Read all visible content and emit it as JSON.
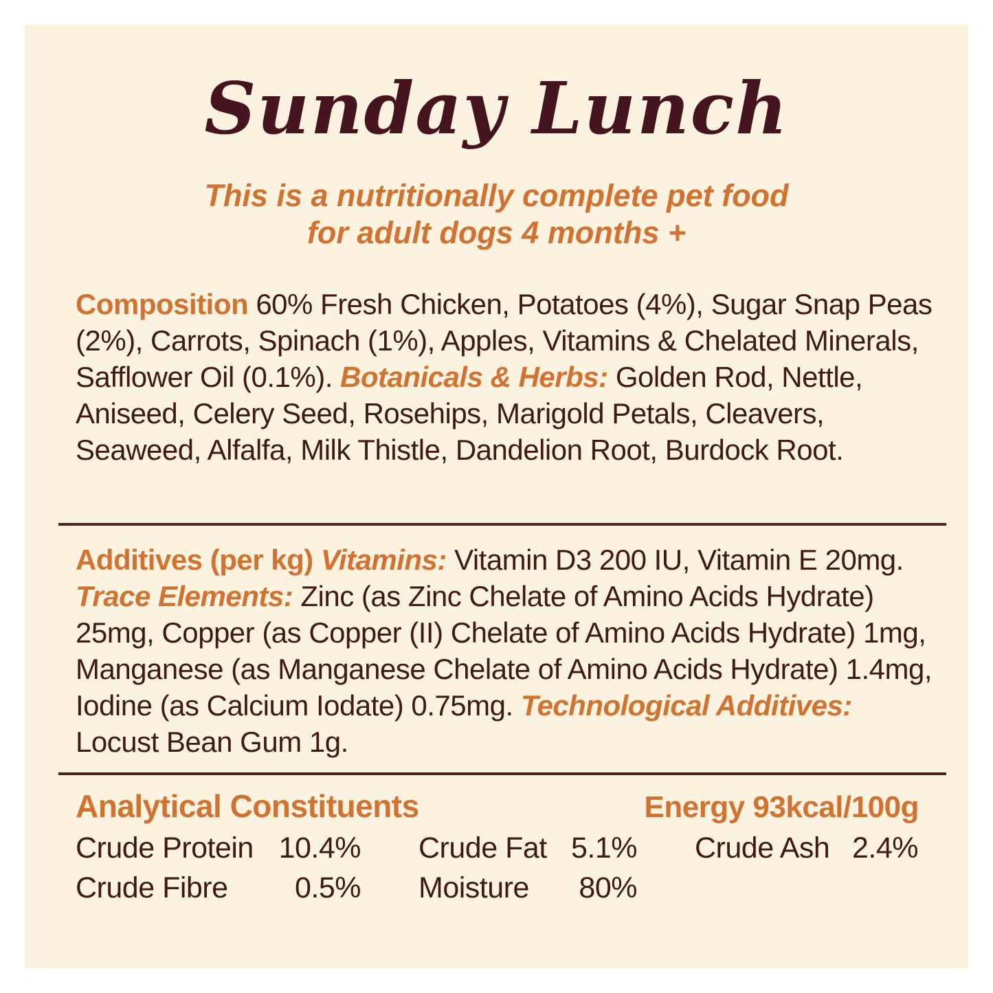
{
  "label": {
    "title": "Sunday Lunch",
    "subtitle": {
      "line1": "This is a nutritionally complete pet food",
      "line2": "for adult dogs 4 months +"
    },
    "composition": {
      "heading": "Composition",
      "text": "60% Fresh Chicken, Potatoes (4%), Sugar Snap Peas (2%), Carrots, Spinach (1%), Apples, Vitamins & Chelated Minerals, Safflower Oil (0.1%).",
      "botanicals_heading": "Botanicals & Herbs:",
      "botanicals_text": "Golden Rod, Nettle, Aniseed, Celery Seed, Rosehips, Marigold Petals, Cleavers, Seaweed, Alfalfa, Milk Thistle, Dandelion Root, Burdock Root."
    },
    "additives": {
      "heading": "Additives (per kg)",
      "vitamins_heading": "Vitamins:",
      "vitamins_text": "Vitamin D3 200 IU, Vitamin E 20mg.",
      "trace_heading": "Trace Elements:",
      "trace_text": "Zinc (as Zinc Chelate of Amino Acids Hydrate) 25mg, Copper (as Copper (II) Chelate of Amino Acids Hydrate) 1mg, Manganese (as Manganese Chelate of Amino Acids Hydrate) 1.4mg, Iodine (as Calcium Iodate) 0.75mg.",
      "tech_heading": "Technological Additives:",
      "tech_text": "Locust Bean Gum 1g."
    },
    "analytical": {
      "heading": "Analytical Constituents",
      "energy": "Energy 93kcal/100g",
      "rows": [
        {
          "label": "Crude Protein",
          "value": "10.4%"
        },
        {
          "label": "Crude Fat",
          "value": "5.1%"
        },
        {
          "label": "Crude Ash",
          "value": "2.4%"
        },
        {
          "label": "Crude Fibre",
          "value": "0.5%"
        },
        {
          "label": "Moisture",
          "value": "80%"
        }
      ]
    },
    "colors": {
      "page_border": "#ffffff",
      "panel_background": "#fbf2df",
      "accent_orange": "#cf7232",
      "body_brown": "#3f1a10",
      "title_maroon": "#45141f",
      "divider_brown": "#4a221a"
    }
  }
}
